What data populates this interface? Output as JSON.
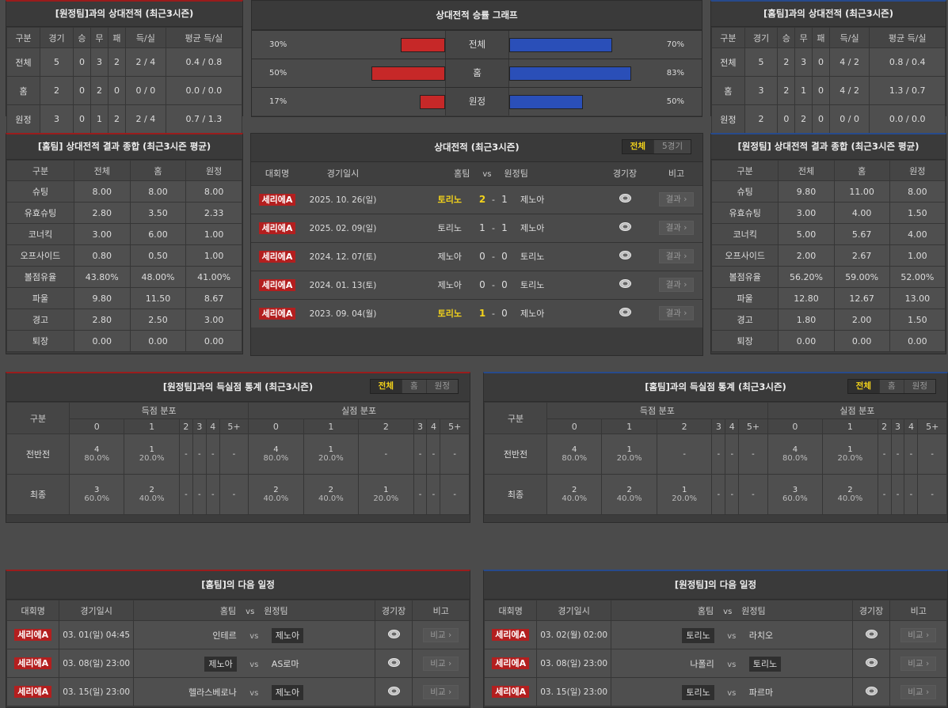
{
  "away_h2h": {
    "title": "[원정팀]과의 상대전적 (최근3시즌)",
    "headers": [
      "구분",
      "경기",
      "승",
      "무",
      "패",
      "득/실",
      "평균 득/실"
    ],
    "rows": [
      [
        "전체",
        "5",
        "0",
        "3",
        "2",
        "2 / 4",
        "0.4 / 0.8"
      ],
      [
        "홈",
        "2",
        "0",
        "2",
        "0",
        "0 / 0",
        "0.0 / 0.0"
      ],
      [
        "원정",
        "3",
        "0",
        "1",
        "2",
        "2 / 4",
        "0.7 / 1.3"
      ]
    ]
  },
  "graph": {
    "title": "상대전적 승률 그래프",
    "colors": {
      "left": "#c62828",
      "right": "#2a4fb8"
    },
    "rows": [
      {
        "label": "전체",
        "left_label": "30%",
        "left": 30,
        "right_label": "70%",
        "right": 70
      },
      {
        "label": "홈",
        "left_label": "50%",
        "left": 50,
        "right_label": "83%",
        "right": 83
      },
      {
        "label": "원정",
        "left_label": "17%",
        "left": 17,
        "right_label": "50%",
        "right": 50
      }
    ]
  },
  "home_h2h": {
    "title": "[홈팀]과의 상대전적 (최근3시즌)",
    "headers": [
      "구분",
      "경기",
      "승",
      "무",
      "패",
      "득/실",
      "평균 득/실"
    ],
    "rows": [
      [
        "전체",
        "5",
        "2",
        "3",
        "0",
        "4 / 2",
        "0.8 / 0.4"
      ],
      [
        "홈",
        "3",
        "2",
        "1",
        "0",
        "4 / 2",
        "1.3 / 0.7"
      ],
      [
        "원정",
        "2",
        "0",
        "2",
        "0",
        "0 / 0",
        "0.0 / 0.0"
      ]
    ]
  },
  "home_summary": {
    "title": "[홈팀] 상대전적 결과 종합 (최근3시즌 평균)",
    "headers": [
      "구분",
      "전체",
      "홈",
      "원정"
    ],
    "rows": [
      [
        "슈팅",
        "8.00",
        "8.00",
        "8.00"
      ],
      [
        "유효슈팅",
        "2.80",
        "3.50",
        "2.33"
      ],
      [
        "코너킥",
        "3.00",
        "6.00",
        "1.00"
      ],
      [
        "오프사이드",
        "0.80",
        "0.50",
        "1.00"
      ],
      [
        "볼점유율",
        "43.80%",
        "48.00%",
        "41.00%"
      ],
      [
        "파울",
        "9.80",
        "11.50",
        "8.67"
      ],
      [
        "경고",
        "2.80",
        "2.50",
        "3.00"
      ],
      [
        "퇴장",
        "0.00",
        "0.00",
        "0.00"
      ]
    ]
  },
  "away_summary": {
    "title": "[원정팀] 상대전적 결과 종합 (최근3시즌 평균)",
    "headers": [
      "구분",
      "전체",
      "홈",
      "원정"
    ],
    "rows": [
      [
        "슈팅",
        "9.80",
        "11.00",
        "8.00"
      ],
      [
        "유효슈팅",
        "3.00",
        "4.00",
        "1.50"
      ],
      [
        "코너킥",
        "5.00",
        "5.67",
        "4.00"
      ],
      [
        "오프사이드",
        "2.00",
        "2.67",
        "1.00"
      ],
      [
        "볼점유율",
        "56.20%",
        "59.00%",
        "52.00%"
      ],
      [
        "파울",
        "12.80",
        "12.67",
        "13.00"
      ],
      [
        "경고",
        "1.80",
        "2.00",
        "1.50"
      ],
      [
        "퇴장",
        "0.00",
        "0.00",
        "0.00"
      ]
    ]
  },
  "h2h": {
    "title": "상대전적 (최근3시즌)",
    "tabs": [
      "전체",
      "5경기"
    ],
    "headers": {
      "comp": "대회명",
      "date": "경기일시",
      "home": "홈팀",
      "vs": "vs",
      "away": "원정팀",
      "venue": "경기장",
      "note": "비고"
    },
    "rows": [
      {
        "comp": "세리에A",
        "date": "2025. 10. 26(일)",
        "home": "토리노",
        "sh": "2",
        "dash": "-",
        "sa": "1",
        "away": "제노아",
        "winner": "home",
        "button": "결과"
      },
      {
        "comp": "세리에A",
        "date": "2025. 02. 09(일)",
        "home": "토리노",
        "sh": "1",
        "dash": "-",
        "sa": "1",
        "away": "제노아",
        "winner": "",
        "button": "결과"
      },
      {
        "comp": "세리에A",
        "date": "2024. 12. 07(토)",
        "home": "제노아",
        "sh": "0",
        "dash": "-",
        "sa": "0",
        "away": "토리노",
        "winner": "",
        "button": "결과"
      },
      {
        "comp": "세리에A",
        "date": "2024. 01. 13(토)",
        "home": "제노아",
        "sh": "0",
        "dash": "-",
        "sa": "0",
        "away": "토리노",
        "winner": "",
        "button": "결과"
      },
      {
        "comp": "세리에A",
        "date": "2023. 09. 04(월)",
        "home": "토리노",
        "sh": "1",
        "dash": "-",
        "sa": "0",
        "away": "제노아",
        "winner": "home",
        "button": "결과"
      }
    ]
  },
  "goals_left": {
    "title": "[원정팀]과의 득실점 통계 (최근3시즌)",
    "tabs": [
      "전체",
      "홈",
      "원정"
    ],
    "col_label": "구분",
    "scored_label": "득점 분포",
    "conceded_label": "실점 분포",
    "buckets": [
      "0",
      "1",
      "2",
      "3",
      "4",
      "5+"
    ],
    "rows": [
      {
        "label": "전반전",
        "scored": [
          [
            "4",
            "80.0%"
          ],
          [
            "1",
            "20.0%"
          ],
          [
            "-",
            ""
          ],
          [
            "-",
            ""
          ],
          [
            "-",
            ""
          ],
          [
            "-",
            ""
          ]
        ],
        "conceded": [
          [
            "4",
            "80.0%"
          ],
          [
            "1",
            "20.0%"
          ],
          [
            "-",
            ""
          ],
          [
            "-",
            ""
          ],
          [
            "-",
            ""
          ],
          [
            "-",
            ""
          ]
        ]
      },
      {
        "label": "최종",
        "scored": [
          [
            "3",
            "60.0%"
          ],
          [
            "2",
            "40.0%"
          ],
          [
            "-",
            ""
          ],
          [
            "-",
            ""
          ],
          [
            "-",
            ""
          ],
          [
            "-",
            ""
          ]
        ],
        "conceded": [
          [
            "2",
            "40.0%"
          ],
          [
            "2",
            "40.0%"
          ],
          [
            "1",
            "20.0%"
          ],
          [
            "-",
            ""
          ],
          [
            "-",
            ""
          ],
          [
            "-",
            ""
          ]
        ]
      }
    ]
  },
  "goals_right": {
    "title": "[홈팀]과의 득실점 통계 (최근3시즌)",
    "tabs": [
      "전체",
      "홈",
      "원정"
    ],
    "col_label": "구분",
    "scored_label": "득점 분포",
    "conceded_label": "실점 분포",
    "buckets": [
      "0",
      "1",
      "2",
      "3",
      "4",
      "5+"
    ],
    "rows": [
      {
        "label": "전반전",
        "scored": [
          [
            "4",
            "80.0%"
          ],
          [
            "1",
            "20.0%"
          ],
          [
            "-",
            ""
          ],
          [
            "-",
            ""
          ],
          [
            "-",
            ""
          ],
          [
            "-",
            ""
          ]
        ],
        "conceded": [
          [
            "4",
            "80.0%"
          ],
          [
            "1",
            "20.0%"
          ],
          [
            "-",
            ""
          ],
          [
            "-",
            ""
          ],
          [
            "-",
            ""
          ],
          [
            "-",
            ""
          ]
        ]
      },
      {
        "label": "최종",
        "scored": [
          [
            "2",
            "40.0%"
          ],
          [
            "2",
            "40.0%"
          ],
          [
            "1",
            "20.0%"
          ],
          [
            "-",
            ""
          ],
          [
            "-",
            ""
          ],
          [
            "-",
            ""
          ]
        ],
        "conceded": [
          [
            "3",
            "60.0%"
          ],
          [
            "2",
            "40.0%"
          ],
          [
            "-",
            ""
          ],
          [
            "-",
            ""
          ],
          [
            "-",
            ""
          ],
          [
            "-",
            ""
          ]
        ]
      }
    ]
  },
  "sched_left": {
    "title": "[홈팀]의 다음 일정",
    "headers": {
      "comp": "대회명",
      "date": "경기일시",
      "home": "홈팀",
      "vs": "vs",
      "away": "원정팀",
      "venue": "경기장",
      "note": "비고"
    },
    "rows": [
      {
        "comp": "세리에A",
        "date": "03. 01(일) 04:45",
        "home": "인테르",
        "vs": "vs",
        "away": "제노아",
        "hl": "away",
        "button": "비교"
      },
      {
        "comp": "세리에A",
        "date": "03. 08(일) 23:00",
        "home": "제노아",
        "vs": "vs",
        "away": "AS로마",
        "hl": "home",
        "button": "비교"
      },
      {
        "comp": "세리에A",
        "date": "03. 15(일) 23:00",
        "home": "헬라스베로나",
        "vs": "vs",
        "away": "제노아",
        "hl": "away",
        "button": "비교"
      }
    ]
  },
  "sched_right": {
    "title": "[원정팀]의 다음 일정",
    "headers": {
      "comp": "대회명",
      "date": "경기일시",
      "home": "홈팀",
      "vs": "vs",
      "away": "원정팀",
      "venue": "경기장",
      "note": "비고"
    },
    "rows": [
      {
        "comp": "세리에A",
        "date": "03. 02(월) 02:00",
        "home": "토리노",
        "vs": "vs",
        "away": "라치오",
        "hl": "home",
        "button": "비교"
      },
      {
        "comp": "세리에A",
        "date": "03. 08(일) 23:00",
        "home": "나폴리",
        "vs": "vs",
        "away": "토리노",
        "hl": "away",
        "button": "비교"
      },
      {
        "comp": "세리에A",
        "date": "03. 15(일) 23:00",
        "home": "토리노",
        "vs": "vs",
        "away": "파르마",
        "hl": "home",
        "button": "비교"
      }
    ]
  }
}
